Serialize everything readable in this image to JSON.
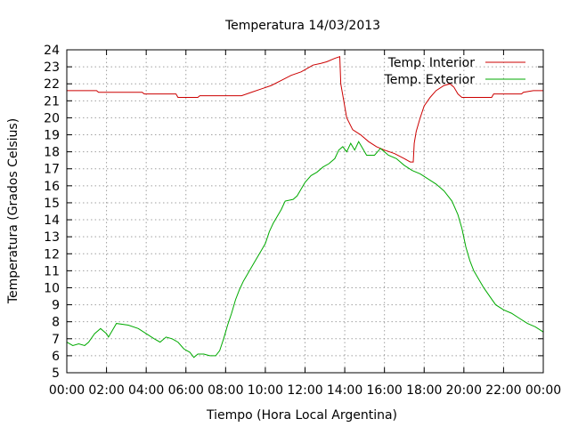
{
  "chart_data": {
    "type": "line",
    "title": "Temperatura 14/03/2013",
    "xlabel": "Tiempo (Hora Local Argentina)",
    "ylabel": "Temperatura (Grados Celsius)",
    "xlim": [
      0,
      24
    ],
    "ylim": [
      5,
      24
    ],
    "grid": true,
    "legend_position": "top-right",
    "x_ticks": [
      "00:00",
      "02:00",
      "04:00",
      "06:00",
      "08:00",
      "10:00",
      "12:00",
      "14:00",
      "16:00",
      "18:00",
      "20:00",
      "22:00",
      "00:00"
    ],
    "y_ticks": [
      "5",
      "6",
      "7",
      "8",
      "9",
      "10",
      "11",
      "12",
      "13",
      "14",
      "15",
      "16",
      "17",
      "18",
      "19",
      "20",
      "21",
      "22",
      "23",
      "24"
    ],
    "series": [
      {
        "name": "Temp. Interior",
        "color": "#cc0000",
        "points": [
          [
            0,
            21.6
          ],
          [
            1.5,
            21.6
          ],
          [
            1.6,
            21.5
          ],
          [
            3.8,
            21.5
          ],
          [
            3.9,
            21.4
          ],
          [
            5.5,
            21.4
          ],
          [
            5.6,
            21.2
          ],
          [
            6.6,
            21.2
          ],
          [
            6.7,
            21.3
          ],
          [
            8.8,
            21.3
          ],
          [
            9.3,
            21.5
          ],
          [
            9.8,
            21.7
          ],
          [
            10.3,
            21.9
          ],
          [
            10.8,
            22.2
          ],
          [
            11.3,
            22.5
          ],
          [
            11.8,
            22.7
          ],
          [
            12.1,
            22.9
          ],
          [
            12.4,
            23.1
          ],
          [
            12.8,
            23.2
          ],
          [
            13.1,
            23.3
          ],
          [
            13.5,
            23.5
          ],
          [
            13.75,
            23.6
          ],
          [
            13.8,
            22.0
          ],
          [
            13.95,
            21.0
          ],
          [
            14.1,
            20.0
          ],
          [
            14.4,
            19.3
          ],
          [
            14.8,
            19.0
          ],
          [
            15.2,
            18.6
          ],
          [
            15.6,
            18.3
          ],
          [
            16.0,
            18.1
          ],
          [
            16.5,
            17.9
          ],
          [
            17.0,
            17.6
          ],
          [
            17.3,
            17.4
          ],
          [
            17.45,
            17.4
          ],
          [
            17.5,
            18.5
          ],
          [
            17.6,
            19.2
          ],
          [
            17.8,
            20.0
          ],
          [
            18.0,
            20.7
          ],
          [
            18.3,
            21.2
          ],
          [
            18.6,
            21.6
          ],
          [
            19.0,
            21.9
          ],
          [
            19.3,
            22.0
          ],
          [
            19.5,
            21.8
          ],
          [
            19.7,
            21.4
          ],
          [
            19.9,
            21.2
          ],
          [
            21.4,
            21.2
          ],
          [
            21.5,
            21.4
          ],
          [
            22.9,
            21.4
          ],
          [
            23.0,
            21.5
          ],
          [
            23.5,
            21.6
          ],
          [
            24,
            21.6
          ]
        ]
      },
      {
        "name": "Temp. Exterior",
        "color": "#00aa00",
        "points": [
          [
            0,
            6.8
          ],
          [
            0.3,
            6.6
          ],
          [
            0.6,
            6.7
          ],
          [
            0.9,
            6.6
          ],
          [
            1.1,
            6.8
          ],
          [
            1.4,
            7.3
          ],
          [
            1.7,
            7.6
          ],
          [
            2.0,
            7.3
          ],
          [
            2.1,
            7.1
          ],
          [
            2.3,
            7.5
          ],
          [
            2.5,
            7.9
          ],
          [
            3.1,
            7.8
          ],
          [
            3.6,
            7.6
          ],
          [
            4.0,
            7.3
          ],
          [
            4.4,
            7.0
          ],
          [
            4.7,
            6.8
          ],
          [
            5.0,
            7.1
          ],
          [
            5.3,
            7.0
          ],
          [
            5.6,
            6.8
          ],
          [
            5.9,
            6.4
          ],
          [
            6.2,
            6.2
          ],
          [
            6.4,
            5.9
          ],
          [
            6.6,
            6.1
          ],
          [
            6.9,
            6.1
          ],
          [
            7.2,
            6.0
          ],
          [
            7.5,
            6.0
          ],
          [
            7.7,
            6.3
          ],
          [
            7.9,
            7.0
          ],
          [
            8.1,
            7.8
          ],
          [
            8.3,
            8.5
          ],
          [
            8.5,
            9.3
          ],
          [
            8.7,
            9.9
          ],
          [
            8.9,
            10.4
          ],
          [
            9.1,
            10.8
          ],
          [
            9.3,
            11.2
          ],
          [
            9.5,
            11.6
          ],
          [
            9.8,
            12.2
          ],
          [
            10.0,
            12.6
          ],
          [
            10.2,
            13.3
          ],
          [
            10.4,
            13.8
          ],
          [
            10.6,
            14.2
          ],
          [
            10.8,
            14.6
          ],
          [
            11.0,
            15.1
          ],
          [
            11.4,
            15.2
          ],
          [
            11.6,
            15.4
          ],
          [
            11.8,
            15.8
          ],
          [
            12.0,
            16.2
          ],
          [
            12.3,
            16.6
          ],
          [
            12.6,
            16.8
          ],
          [
            12.9,
            17.1
          ],
          [
            13.2,
            17.3
          ],
          [
            13.5,
            17.6
          ],
          [
            13.7,
            18.1
          ],
          [
            13.9,
            18.3
          ],
          [
            14.1,
            18.0
          ],
          [
            14.3,
            18.5
          ],
          [
            14.5,
            18.1
          ],
          [
            14.7,
            18.6
          ],
          [
            14.9,
            18.2
          ],
          [
            15.1,
            17.8
          ],
          [
            15.5,
            17.8
          ],
          [
            15.8,
            18.2
          ],
          [
            16.2,
            17.8
          ],
          [
            16.6,
            17.6
          ],
          [
            17.0,
            17.2
          ],
          [
            17.4,
            16.9
          ],
          [
            17.8,
            16.7
          ],
          [
            18.2,
            16.4
          ],
          [
            18.6,
            16.1
          ],
          [
            19.0,
            15.7
          ],
          [
            19.4,
            15.1
          ],
          [
            19.7,
            14.3
          ],
          [
            19.9,
            13.5
          ],
          [
            20.1,
            12.4
          ],
          [
            20.3,
            11.6
          ],
          [
            20.5,
            11.0
          ],
          [
            20.8,
            10.4
          ],
          [
            21.0,
            10.0
          ],
          [
            21.3,
            9.5
          ],
          [
            21.6,
            9.0
          ],
          [
            22.0,
            8.7
          ],
          [
            22.4,
            8.5
          ],
          [
            22.8,
            8.2
          ],
          [
            23.2,
            7.9
          ],
          [
            23.6,
            7.7
          ],
          [
            24,
            7.4
          ]
        ]
      }
    ]
  }
}
